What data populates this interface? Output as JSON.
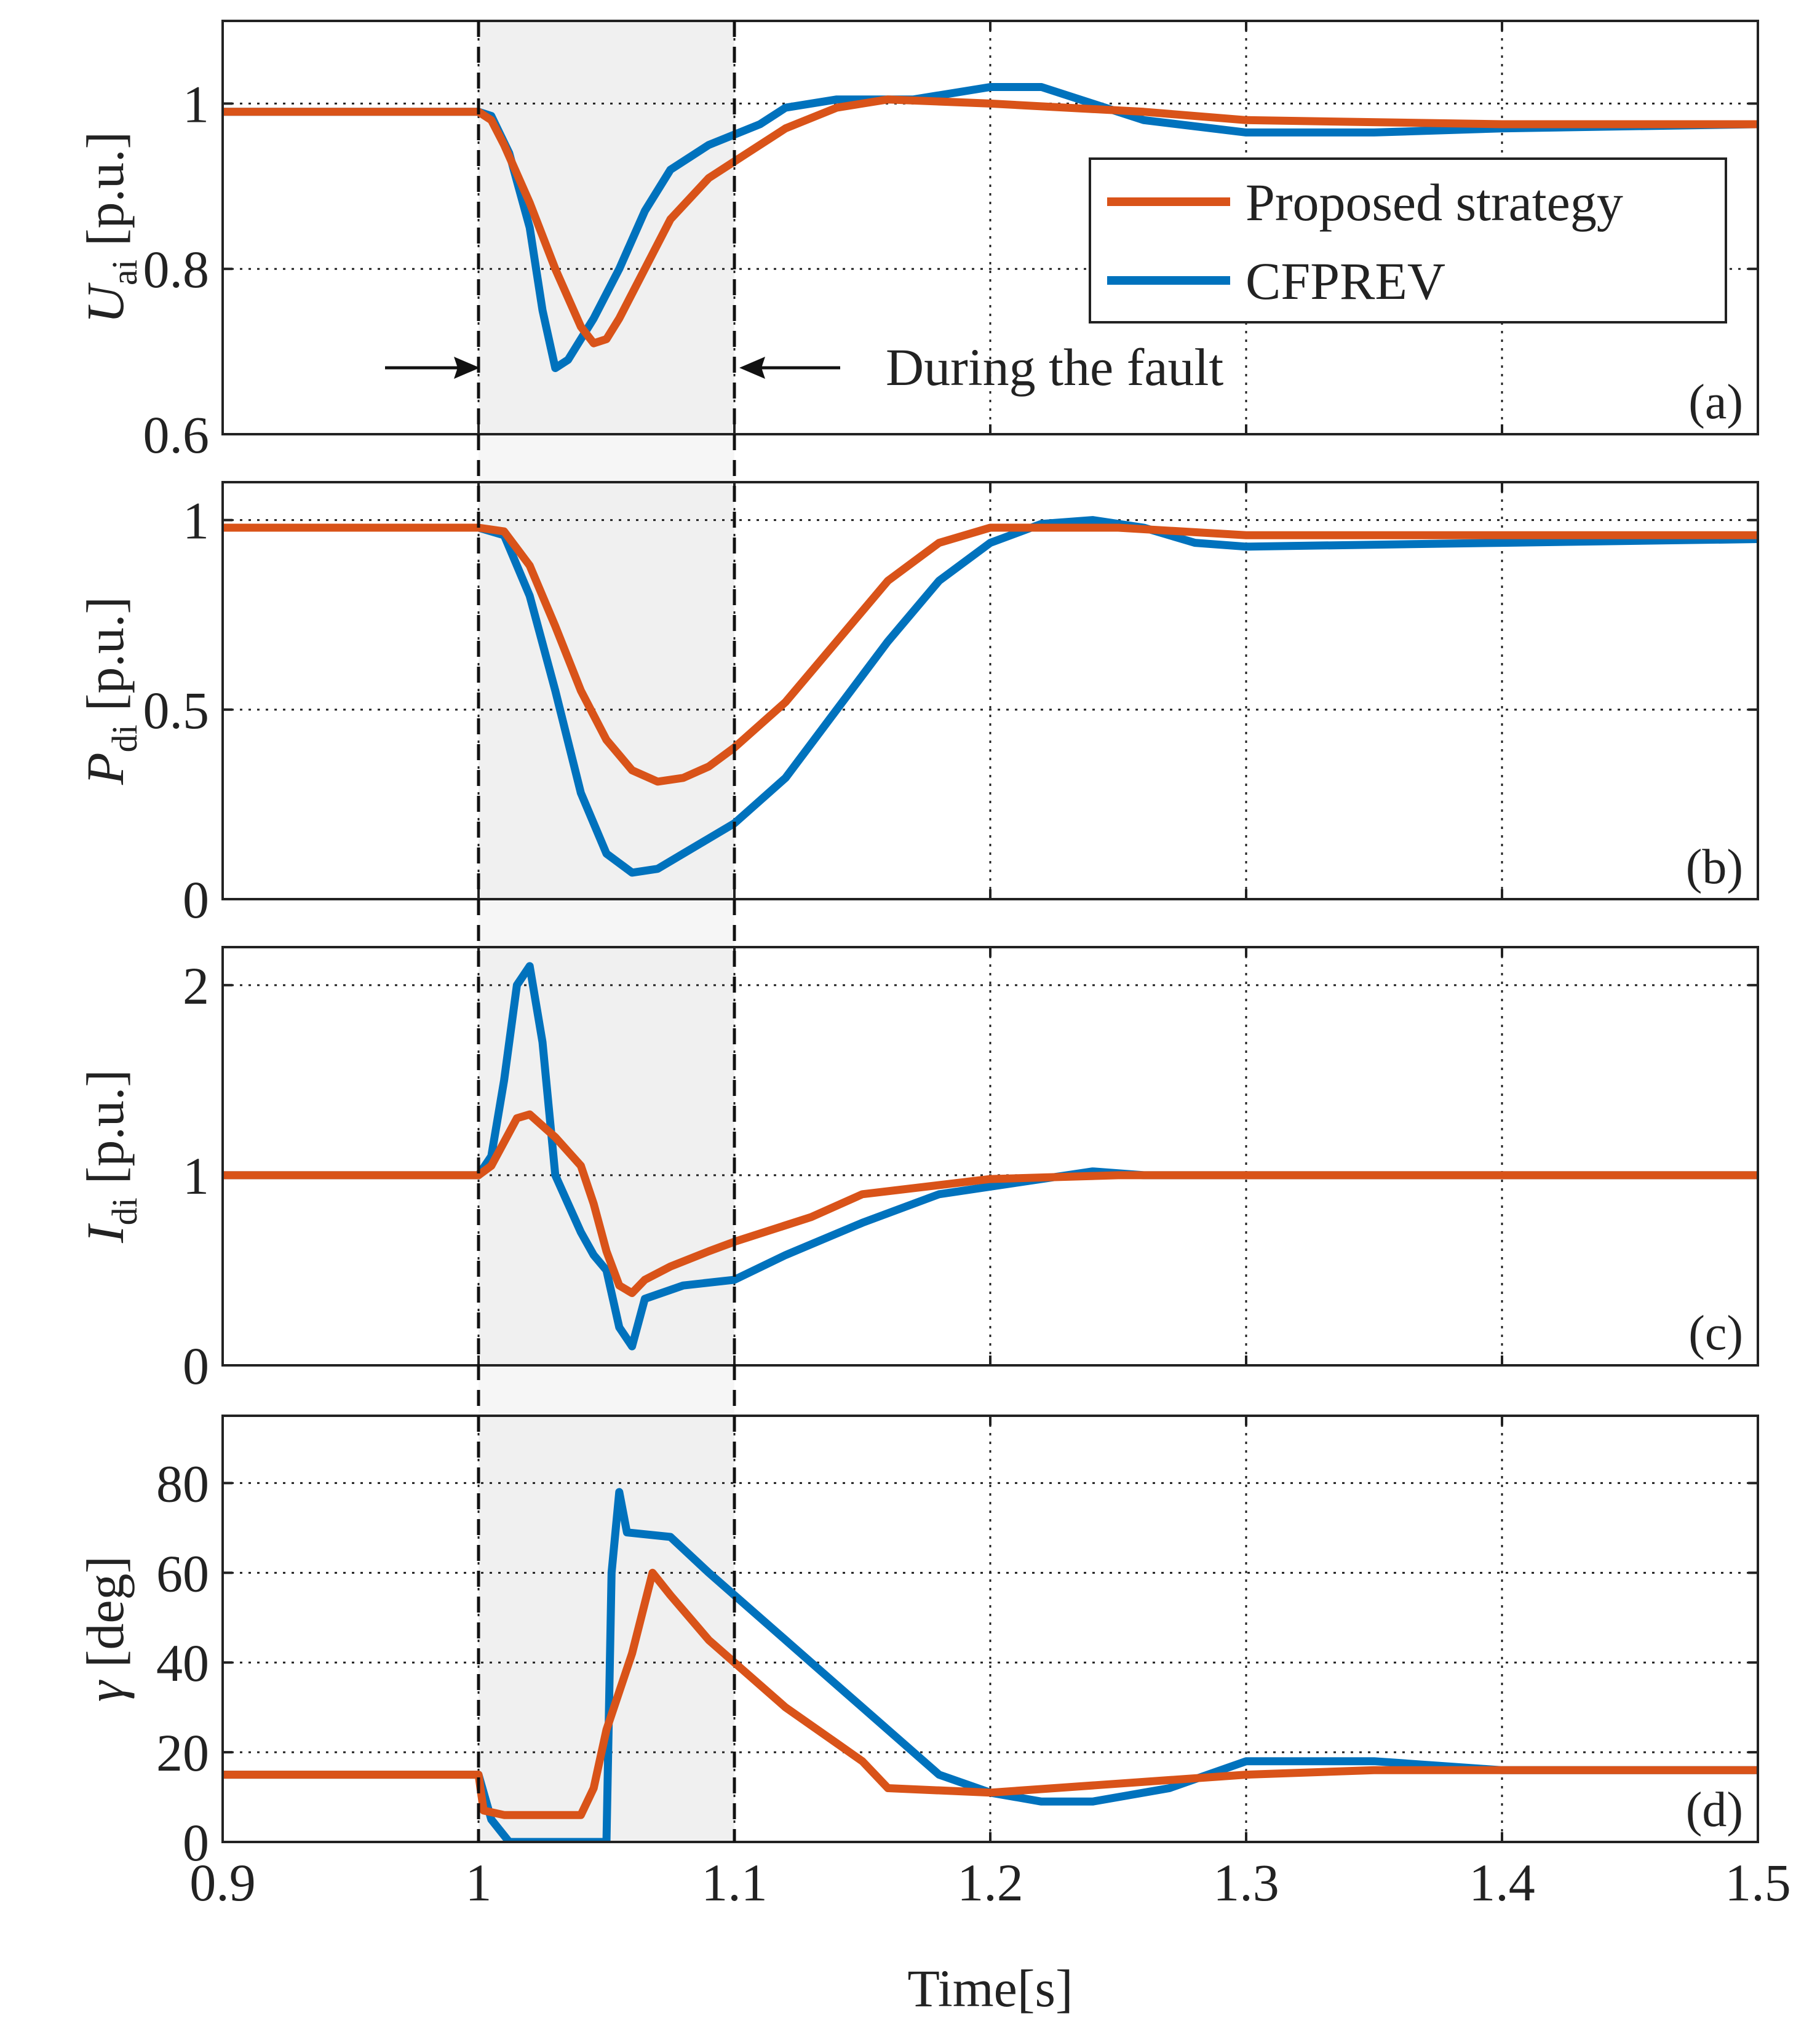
{
  "chart_data": {
    "type": "line",
    "xlabel": "Time[s]",
    "xlim": [
      0.9,
      1.5
    ],
    "xticks": [
      0.9,
      1.0,
      1.1,
      1.2,
      1.3,
      1.4,
      1.5
    ],
    "xtick_labels": [
      "0.9",
      "1",
      "1.1",
      "1.2",
      "1.3",
      "1.4",
      "1.5"
    ],
    "fault_window": [
      1.0,
      1.1
    ],
    "annotation": "During the fault",
    "legend": {
      "placement": "top-right of panel (a)",
      "entries": [
        {
          "label": "Proposed strategy",
          "color": "#D95319"
        },
        {
          "label": "CFPREV",
          "color": "#0072BD"
        }
      ]
    },
    "colors": {
      "proposed": "#D95319",
      "cfprev": "#0072BD",
      "shade": "#F0F0F0",
      "axes": "#222222"
    },
    "panels": [
      {
        "tag": "(a)",
        "ylabel_main": "U",
        "ylabel_sub": "ai",
        "ylabel_unit": "[p.u.]",
        "ylim": [
          0.6,
          1.1
        ],
        "yticks": [
          0.6,
          0.8,
          1.0
        ],
        "ytick_labels": [
          "0.6",
          "0.8",
          "1"
        ],
        "series": [
          {
            "name": "Proposed strategy",
            "points": [
              [
                0.9,
                0.99
              ],
              [
                1.0,
                0.99
              ],
              [
                1.005,
                0.98
              ],
              [
                1.01,
                0.95
              ],
              [
                1.02,
                0.88
              ],
              [
                1.03,
                0.8
              ],
              [
                1.04,
                0.73
              ],
              [
                1.045,
                0.71
              ],
              [
                1.05,
                0.715
              ],
              [
                1.055,
                0.74
              ],
              [
                1.065,
                0.8
              ],
              [
                1.075,
                0.86
              ],
              [
                1.09,
                0.91
              ],
              [
                1.1,
                0.93
              ],
              [
                1.12,
                0.97
              ],
              [
                1.14,
                0.995
              ],
              [
                1.16,
                1.005
              ],
              [
                1.2,
                1.0
              ],
              [
                1.26,
                0.99
              ],
              [
                1.3,
                0.98
              ],
              [
                1.4,
                0.975
              ],
              [
                1.5,
                0.975
              ]
            ]
          },
          {
            "name": "CFPREV",
            "points": [
              [
                0.9,
                0.99
              ],
              [
                1.0,
                0.99
              ],
              [
                1.005,
                0.985
              ],
              [
                1.012,
                0.94
              ],
              [
                1.02,
                0.85
              ],
              [
                1.025,
                0.75
              ],
              [
                1.03,
                0.68
              ],
              [
                1.035,
                0.69
              ],
              [
                1.045,
                0.74
              ],
              [
                1.055,
                0.8
              ],
              [
                1.065,
                0.87
              ],
              [
                1.075,
                0.92
              ],
              [
                1.09,
                0.95
              ],
              [
                1.11,
                0.975
              ],
              [
                1.12,
                0.995
              ],
              [
                1.14,
                1.005
              ],
              [
                1.17,
                1.005
              ],
              [
                1.2,
                1.02
              ],
              [
                1.22,
                1.02
              ],
              [
                1.24,
                1.0
              ],
              [
                1.26,
                0.98
              ],
              [
                1.3,
                0.965
              ],
              [
                1.35,
                0.965
              ],
              [
                1.4,
                0.97
              ],
              [
                1.5,
                0.975
              ]
            ]
          }
        ]
      },
      {
        "tag": "(b)",
        "ylabel_main": "P",
        "ylabel_sub": "di",
        "ylabel_unit": "[p.u.]",
        "ylim": [
          0,
          1.1
        ],
        "yticks": [
          0,
          0.5,
          1.0
        ],
        "ytick_labels": [
          "0",
          "0.5",
          "1"
        ],
        "series": [
          {
            "name": "Proposed strategy",
            "points": [
              [
                0.9,
                0.98
              ],
              [
                1.0,
                0.98
              ],
              [
                1.01,
                0.97
              ],
              [
                1.02,
                0.88
              ],
              [
                1.03,
                0.72
              ],
              [
                1.04,
                0.55
              ],
              [
                1.05,
                0.42
              ],
              [
                1.06,
                0.34
              ],
              [
                1.07,
                0.31
              ],
              [
                1.08,
                0.32
              ],
              [
                1.09,
                0.35
              ],
              [
                1.1,
                0.4
              ],
              [
                1.12,
                0.52
              ],
              [
                1.14,
                0.68
              ],
              [
                1.16,
                0.84
              ],
              [
                1.18,
                0.94
              ],
              [
                1.2,
                0.98
              ],
              [
                1.25,
                0.98
              ],
              [
                1.3,
                0.96
              ],
              [
                1.4,
                0.96
              ],
              [
                1.5,
                0.96
              ]
            ]
          },
          {
            "name": "CFPREV",
            "points": [
              [
                0.9,
                0.98
              ],
              [
                1.0,
                0.98
              ],
              [
                1.01,
                0.96
              ],
              [
                1.02,
                0.8
              ],
              [
                1.03,
                0.55
              ],
              [
                1.04,
                0.28
              ],
              [
                1.05,
                0.12
              ],
              [
                1.06,
                0.07
              ],
              [
                1.07,
                0.08
              ],
              [
                1.08,
                0.12
              ],
              [
                1.1,
                0.2
              ],
              [
                1.12,
                0.32
              ],
              [
                1.14,
                0.5
              ],
              [
                1.16,
                0.68
              ],
              [
                1.18,
                0.84
              ],
              [
                1.2,
                0.94
              ],
              [
                1.22,
                0.99
              ],
              [
                1.24,
                1.0
              ],
              [
                1.26,
                0.98
              ],
              [
                1.28,
                0.94
              ],
              [
                1.3,
                0.93
              ],
              [
                1.4,
                0.94
              ],
              [
                1.5,
                0.95
              ]
            ]
          }
        ]
      },
      {
        "tag": "(c)",
        "ylabel_main": "I",
        "ylabel_sub": "di",
        "ylabel_unit": "[p.u.]",
        "ylim": [
          0,
          2.2
        ],
        "yticks": [
          0,
          1,
          2
        ],
        "ytick_labels": [
          "0",
          "1",
          "2"
        ],
        "series": [
          {
            "name": "Proposed strategy",
            "points": [
              [
                0.9,
                1.0
              ],
              [
                1.0,
                1.0
              ],
              [
                1.005,
                1.05
              ],
              [
                1.015,
                1.3
              ],
              [
                1.02,
                1.32
              ],
              [
                1.03,
                1.2
              ],
              [
                1.04,
                1.05
              ],
              [
                1.045,
                0.85
              ],
              [
                1.05,
                0.6
              ],
              [
                1.055,
                0.42
              ],
              [
                1.06,
                0.38
              ],
              [
                1.065,
                0.45
              ],
              [
                1.075,
                0.52
              ],
              [
                1.09,
                0.6
              ],
              [
                1.1,
                0.65
              ],
              [
                1.13,
                0.78
              ],
              [
                1.15,
                0.9
              ],
              [
                1.2,
                0.98
              ],
              [
                1.25,
                1.0
              ],
              [
                1.5,
                1.0
              ]
            ]
          },
          {
            "name": "CFPREV",
            "points": [
              [
                0.9,
                1.0
              ],
              [
                1.0,
                1.0
              ],
              [
                1.005,
                1.1
              ],
              [
                1.01,
                1.5
              ],
              [
                1.015,
                2.0
              ],
              [
                1.02,
                2.1
              ],
              [
                1.025,
                1.7
              ],
              [
                1.03,
                1.0
              ],
              [
                1.035,
                0.85
              ],
              [
                1.04,
                0.7
              ],
              [
                1.045,
                0.58
              ],
              [
                1.05,
                0.5
              ],
              [
                1.055,
                0.2
              ],
              [
                1.06,
                0.1
              ],
              [
                1.065,
                0.35
              ],
              [
                1.08,
                0.42
              ],
              [
                1.1,
                0.45
              ],
              [
                1.12,
                0.58
              ],
              [
                1.15,
                0.75
              ],
              [
                1.18,
                0.9
              ],
              [
                1.22,
                0.98
              ],
              [
                1.24,
                1.02
              ],
              [
                1.26,
                1.0
              ],
              [
                1.5,
                1.0
              ]
            ]
          }
        ]
      },
      {
        "tag": "(d)",
        "ylabel_main": "γ",
        "ylabel_sub": "",
        "ylabel_unit": "[deg]",
        "ylim": [
          0,
          95
        ],
        "yticks": [
          0,
          20,
          40,
          60,
          80
        ],
        "ytick_labels": [
          "0",
          "20",
          "40",
          "60",
          "80"
        ],
        "series": [
          {
            "name": "Proposed strategy",
            "points": [
              [
                0.9,
                15
              ],
              [
                1.0,
                15
              ],
              [
                1.002,
                7
              ],
              [
                1.01,
                6
              ],
              [
                1.04,
                6
              ],
              [
                1.045,
                12
              ],
              [
                1.05,
                25
              ],
              [
                1.06,
                42
              ],
              [
                1.068,
                60
              ],
              [
                1.075,
                55
              ],
              [
                1.09,
                45
              ],
              [
                1.1,
                40
              ],
              [
                1.12,
                30
              ],
              [
                1.14,
                22
              ],
              [
                1.15,
                18
              ],
              [
                1.16,
                12
              ],
              [
                1.2,
                11
              ],
              [
                1.25,
                13
              ],
              [
                1.3,
                15
              ],
              [
                1.35,
                16
              ],
              [
                1.4,
                16
              ],
              [
                1.5,
                16
              ]
            ]
          },
          {
            "name": "CFPREV",
            "points": [
              [
                0.9,
                15
              ],
              [
                1.0,
                15
              ],
              [
                1.005,
                5
              ],
              [
                1.012,
                0
              ],
              [
                1.05,
                0
              ],
              [
                1.052,
                60
              ],
              [
                1.055,
                78
              ],
              [
                1.058,
                69
              ],
              [
                1.075,
                68
              ],
              [
                1.09,
                60
              ],
              [
                1.1,
                55
              ],
              [
                1.12,
                45
              ],
              [
                1.14,
                35
              ],
              [
                1.16,
                25
              ],
              [
                1.18,
                15
              ],
              [
                1.2,
                11
              ],
              [
                1.22,
                9
              ],
              [
                1.24,
                9
              ],
              [
                1.27,
                12
              ],
              [
                1.3,
                18
              ],
              [
                1.35,
                18
              ],
              [
                1.4,
                16
              ],
              [
                1.5,
                16
              ]
            ]
          }
        ]
      }
    ]
  }
}
